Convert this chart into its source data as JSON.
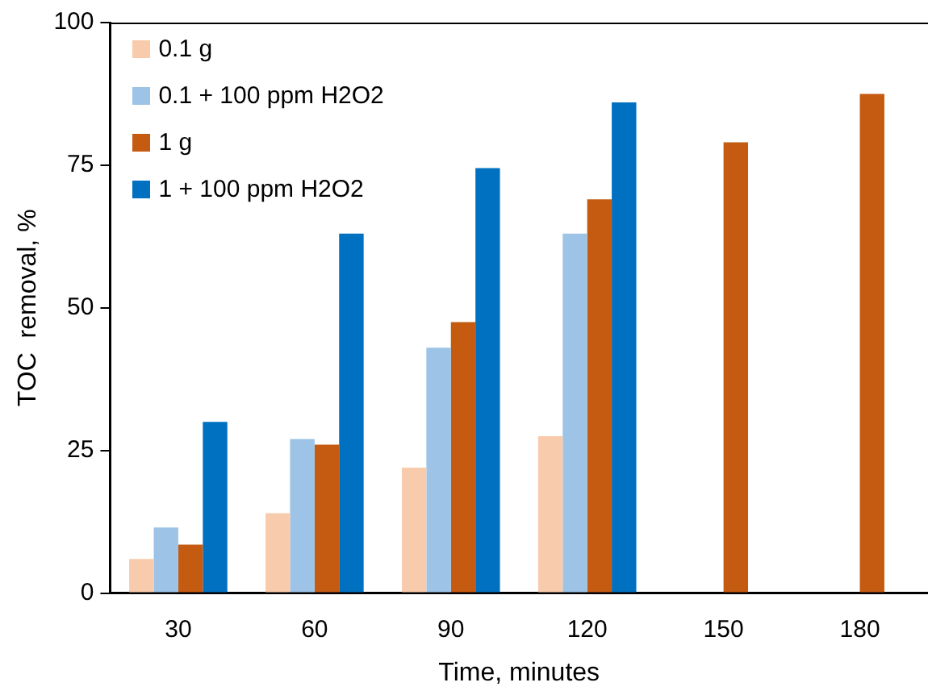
{
  "chart_data": {
    "type": "bar",
    "xlabel": "Time, minutes",
    "ylabel": "TOC  removal, %",
    "categories": [
      "30",
      "60",
      "90",
      "120",
      "150",
      "180"
    ],
    "series": [
      {
        "name": "0.1 g",
        "color": "#f8cbad",
        "values": [
          6,
          14,
          22,
          27.5,
          null,
          null
        ]
      },
      {
        "name": "0.1 + 100 ppm H2O2",
        "color": "#9dc3e6",
        "values": [
          11.5,
          27,
          43,
          63,
          null,
          null
        ]
      },
      {
        "name": "1 g",
        "color": "#c55a11",
        "values": [
          8.5,
          26,
          47.5,
          69,
          79,
          87.5
        ]
      },
      {
        "name": "1 + 100 ppm H2O2",
        "color": "#0070c0",
        "values": [
          30,
          63,
          74.5,
          86,
          null,
          null
        ]
      }
    ],
    "ylim": [
      0,
      100
    ],
    "yticks": [
      0,
      25,
      50,
      75,
      100
    ],
    "grid": false,
    "legend": "top left"
  }
}
